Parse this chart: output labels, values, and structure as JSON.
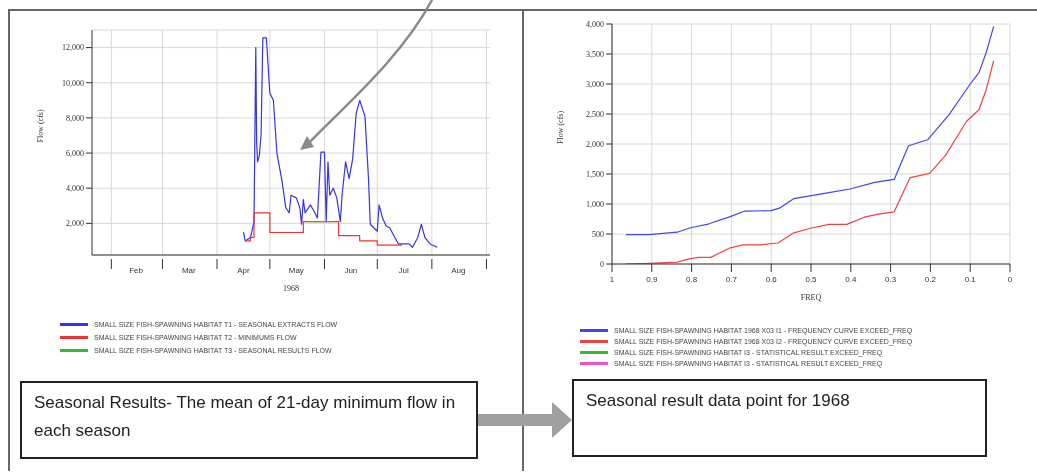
{
  "chart_data": [
    {
      "type": "line",
      "xlabel": "1968",
      "ylabel": "Flow (cfs)",
      "xlim": [
        "1968-01-21",
        "1968-09-03"
      ],
      "ylim": [
        200,
        13000
      ],
      "xticks": [
        {
          "value": "1968-02-01",
          "label": null
        },
        {
          "value": "1968-02-15",
          "label": "Feb"
        },
        {
          "value": "1968-03-01",
          "label": null
        },
        {
          "value": "1968-03-16",
          "label": "Mar"
        },
        {
          "value": "1968-04-01",
          "label": null
        },
        {
          "value": "1968-04-16",
          "label": "Apr"
        },
        {
          "value": "1968-05-01",
          "label": null
        },
        {
          "value": "1968-05-16",
          "label": "May"
        },
        {
          "value": "1968-06-01",
          "label": null
        },
        {
          "value": "1968-06-16",
          "label": "Jun"
        },
        {
          "value": "1968-07-01",
          "label": null
        },
        {
          "value": "1968-07-16",
          "label": "Jul"
        },
        {
          "value": "1968-08-01",
          "label": null
        },
        {
          "value": "1968-08-16",
          "label": "Aug"
        },
        {
          "value": "1968-09-01",
          "label": null
        }
      ],
      "yticks": [
        {
          "value": 2000,
          "label": "2,000"
        },
        {
          "value": 4000,
          "label": "4,000"
        },
        {
          "value": 6000,
          "label": "6,000"
        },
        {
          "value": 8000,
          "label": "8,000"
        },
        {
          "value": 10000,
          "label": "10,000"
        },
        {
          "value": 12000,
          "label": "12,000"
        }
      ],
      "grid": true,
      "legend": "bottom",
      "marker": "none",
      "series": [
        {
          "name": "SMALL SIZE FISH-SPAWNING HABITAT T1 - SEASONAL EXTRACTS FLOW",
          "color": "#3333ee",
          "x": [
            "1968-04-16",
            "1968-04-17",
            "1968-04-20",
            "1968-04-22",
            "1968-04-23",
            "1968-04-23T12:00",
            "1968-04-24",
            "1968-04-25",
            "1968-04-26",
            "1968-04-27",
            "1968-04-29",
            "1968-05-01",
            "1968-05-03",
            "1968-05-05",
            "1968-05-08",
            "1968-05-10",
            "1968-05-12",
            "1968-05-13",
            "1968-05-16",
            "1968-05-18",
            "1968-05-19",
            "1968-05-20",
            "1968-05-21",
            "1968-05-24",
            "1968-05-26",
            "1968-05-28",
            "1968-05-30",
            "1968-06-01",
            "1968-06-02",
            "1968-06-03",
            "1968-06-04",
            "1968-06-06",
            "1968-06-08",
            "1968-06-10",
            "1968-06-11",
            "1968-06-13",
            "1968-06-15",
            "1968-06-17",
            "1968-06-19",
            "1968-06-21",
            "1968-06-24",
            "1968-06-26",
            "1968-06-27",
            "1968-07-01",
            "1968-07-02",
            "1968-07-04",
            "1968-07-06",
            "1968-07-08",
            "1968-07-11",
            "1968-07-13",
            "1968-07-19",
            "1968-07-21",
            "1968-07-24",
            "1968-07-26",
            "1968-07-28",
            "1968-07-31",
            "1968-08-04"
          ],
          "values": [
            1500,
            1000,
            1200,
            2100,
            12000,
            6600,
            5500,
            5850,
            7000,
            12550,
            12550,
            9400,
            9000,
            6000,
            4350,
            2900,
            2600,
            3600,
            3450,
            2900,
            1950,
            3350,
            2600,
            3050,
            2700,
            2300,
            6050,
            6050,
            2100,
            5500,
            3600,
            4000,
            3450,
            2100,
            3600,
            5500,
            4550,
            5650,
            8250,
            9000,
            8100,
            4550,
            1950,
            1550,
            3050,
            2300,
            1850,
            1750,
            1200,
            830,
            830,
            640,
            1200,
            1950,
            1200,
            830,
            640
          ]
        },
        {
          "name": "SMALL SIZE FISH-SPAWNING HABITAT T2 - MINIMUMS FLOW",
          "color": "#ee3333",
          "type": "step",
          "x": [
            "1968-04-17",
            "1968-04-20",
            "1968-04-22",
            "1968-05-01",
            "1968-05-20",
            "1968-06-09",
            "1968-06-21",
            "1968-07-01",
            "1968-07-15"
          ],
          "values": [
            1000,
            1200,
            2600,
            1480,
            2100,
            1300,
            1000,
            760,
            760
          ]
        },
        {
          "name": "SMALL SIZE FISH-SPAWNING HABITAT T3 - SEASONAL RESULTS FLOW",
          "color": "#33bb33",
          "x": [
            "1968-05-22",
            "1968-06-06"
          ],
          "values": [
            2100,
            2100
          ]
        }
      ],
      "annotations": [
        "Seasonal Results- The mean of 21-day minimum flow in each season"
      ]
    },
    {
      "type": "line",
      "xlabel": "FREQ",
      "ylabel": "Flow (cfs)",
      "xlim": [
        1,
        0
      ],
      "ylim": [
        0,
        4000
      ],
      "xticks": [
        1,
        0.9,
        0.8,
        0.7,
        0.6,
        0.5,
        0.4,
        0.3,
        0.2,
        0.1,
        0
      ],
      "yticks": [
        0,
        500,
        {
          "value": 1000,
          "label": "1,000"
        },
        {
          "value": 1500,
          "label": "1,500"
        },
        {
          "value": 2000,
          "label": "2,000"
        },
        {
          "value": 2500,
          "label": "2,500"
        },
        {
          "value": 3000,
          "label": "3,000"
        },
        {
          "value": 3500,
          "label": "3,500"
        },
        {
          "value": 4000,
          "label": "4,000"
        }
      ],
      "grid": true,
      "legend": "bottom",
      "marker": "none",
      "series": [
        {
          "name": "SMALL SIZE FISH-SPAWNING HABITAT 1968 X03 I1 - FREQUENCY CURVE EXCEED_FREQ",
          "color": "#4444ee",
          "x": [
            0.965,
            0.907,
            0.836,
            0.805,
            0.756,
            0.703,
            0.668,
            0.601,
            0.579,
            0.543,
            0.499,
            0.455,
            0.402,
            0.34,
            0.291,
            0.255,
            0.207,
            0.153,
            0.1,
            0.078,
            0.06,
            0.041
          ],
          "values": [
            490,
            490,
            530,
            600,
            670,
            790,
            880,
            890,
            930,
            1090,
            1140,
            1190,
            1250,
            1360,
            1410,
            1970,
            2070,
            2490,
            3000,
            3190,
            3520,
            3960
          ]
        },
        {
          "name": "SMALL SIZE FISH-SPAWNING HABITAT 1968 X03 I2 - FREQUENCY CURVE EXCEED_FREQ",
          "color": "#ee4444",
          "x": [
            0.965,
            0.907,
            0.836,
            0.809,
            0.783,
            0.752,
            0.703,
            0.672,
            0.628,
            0.583,
            0.543,
            0.499,
            0.455,
            0.41,
            0.366,
            0.331,
            0.291,
            0.251,
            0.202,
            0.162,
            0.109,
            0.078,
            0.06,
            0.041
          ],
          "values": [
            0,
            10,
            30,
            80,
            110,
            110,
            270,
            320,
            320,
            350,
            520,
            600,
            660,
            660,
            780,
            830,
            870,
            1440,
            1510,
            1810,
            2380,
            2570,
            2900,
            3390
          ]
        },
        {
          "name": "SMALL SIZE FISH-SPAWNING HABITAT I3 - STATISTICAL RESULT EXCEED_FREQ",
          "color": "#33bb33"
        },
        {
          "name": "SMALL SIZE FISH-SPAWNING HABITAT I3 - STATISTICAL RESULT EXCEED_FREQ",
          "color": "#ee55bb"
        }
      ],
      "annotations": [
        "Seasonal result data point for 1968"
      ]
    }
  ]
}
